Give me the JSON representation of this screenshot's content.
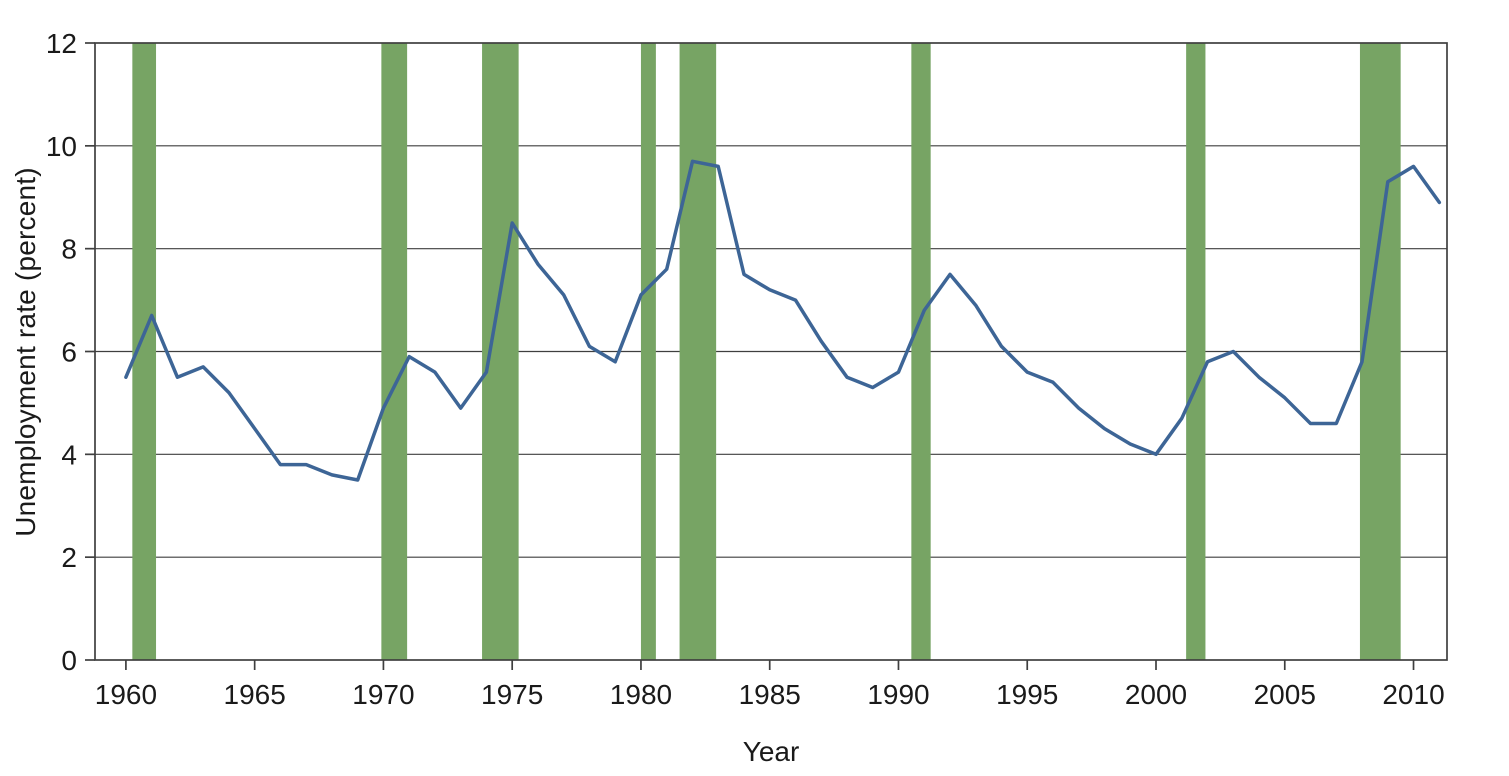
{
  "chart_data": {
    "type": "line",
    "title": "",
    "xlabel": "Year",
    "ylabel": "Unemployment rate (percent)",
    "xlim": [
      1958.8,
      2011.3
    ],
    "ylim": [
      0,
      12
    ],
    "xticks": [
      1960,
      1965,
      1970,
      1975,
      1980,
      1985,
      1990,
      1995,
      2000,
      2005,
      2010
    ],
    "yticks": [
      0,
      2,
      4,
      6,
      8,
      10,
      12
    ],
    "grid": "horizontal",
    "legend": "none",
    "colors": {
      "line": "#3d6596",
      "recession_band": "#77a464",
      "grid": "#3f3f3f",
      "axis": "#3f3f3f",
      "text": "#1a1a1a",
      "background": "#ffffff"
    },
    "series": [
      {
        "name": "Unemployment rate",
        "color": "#3d6596",
        "x": [
          1960,
          1961,
          1962,
          1963,
          1964,
          1965,
          1966,
          1967,
          1968,
          1969,
          1970,
          1971,
          1972,
          1973,
          1974,
          1975,
          1976,
          1977,
          1978,
          1979,
          1980,
          1981,
          1982,
          1983,
          1984,
          1985,
          1986,
          1987,
          1988,
          1989,
          1990,
          1991,
          1992,
          1993,
          1994,
          1995,
          1996,
          1997,
          1998,
          1999,
          2000,
          2001,
          2002,
          2003,
          2004,
          2005,
          2006,
          2007,
          2008,
          2009,
          2010,
          2011
        ],
        "values": [
          5.5,
          6.7,
          5.5,
          5.7,
          5.2,
          4.5,
          3.8,
          3.8,
          3.6,
          3.5,
          4.9,
          5.9,
          5.6,
          4.9,
          5.6,
          8.5,
          7.7,
          7.1,
          6.1,
          5.8,
          7.1,
          7.6,
          9.7,
          9.6,
          7.5,
          7.2,
          7.0,
          6.2,
          5.5,
          5.3,
          5.6,
          6.8,
          7.5,
          6.9,
          6.1,
          5.6,
          5.4,
          4.9,
          4.5,
          4.2,
          4.0,
          4.7,
          5.8,
          6.0,
          5.5,
          5.1,
          4.6,
          4.6,
          5.8,
          9.3,
          9.6,
          8.9
        ]
      }
    ],
    "recession_bands": {
      "color": "#77a464",
      "ranges": [
        [
          1960.25,
          1961.17
        ],
        [
          1969.92,
          1970.92
        ],
        [
          1973.83,
          1975.25
        ],
        [
          1980.0,
          1980.58
        ],
        [
          1981.5,
          1982.92
        ],
        [
          1990.5,
          1991.25
        ],
        [
          2001.17,
          2001.92
        ],
        [
          2007.92,
          2009.5
        ]
      ]
    }
  }
}
